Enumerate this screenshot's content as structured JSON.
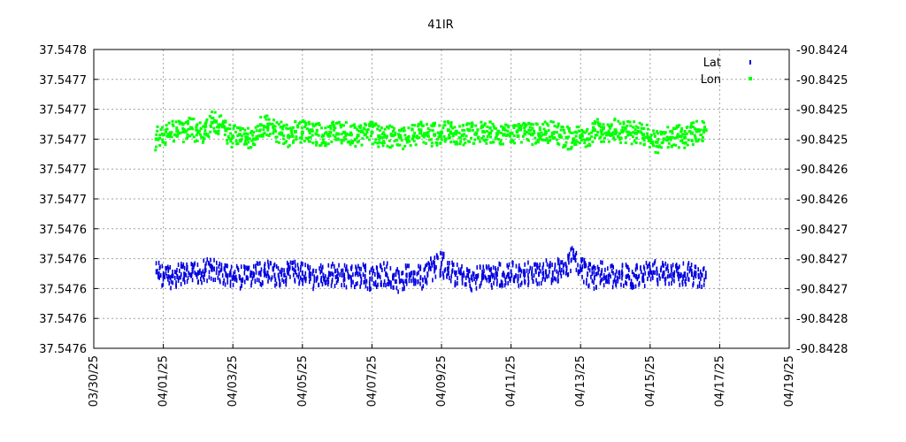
{
  "chart_data": {
    "type": "scatter",
    "title": "41IR",
    "xlabel": "",
    "ylabel": "",
    "y2label": "",
    "grid": true,
    "legend_position": "top-right",
    "x_tick_labels": [
      "03/30/25",
      "04/01/25",
      "04/03/25",
      "04/05/25",
      "04/07/25",
      "04/09/25",
      "04/11/25",
      "04/13/25",
      "04/15/25",
      "04/17/25",
      "04/19/25"
    ],
    "y_left_tick_labels": [
      "37.5478",
      "37.5477",
      "37.5477",
      "37.5477",
      "37.5477",
      "37.5477",
      "37.5476",
      "37.5476",
      "37.5476",
      "37.5476",
      "37.5476"
    ],
    "y_right_tick_labels": [
      "-90.8424",
      "-90.8425",
      "-90.8425",
      "-90.8425",
      "-90.8426",
      "-90.8426",
      "-90.8427",
      "-90.8427",
      "-90.8427",
      "-90.8428",
      "-90.8428"
    ],
    "x_range_days": [
      0,
      20
    ],
    "y_left_range": [
      37.54755,
      37.5478
    ],
    "y_right_range": [
      -90.8428,
      -90.8424
    ],
    "series": [
      {
        "name": "Lat",
        "axis": "left",
        "color": "#0000e0",
        "marker": "dash",
        "x": [
          1.8,
          2.0,
          2.2,
          2.4,
          2.6,
          2.8,
          3.0,
          3.2,
          3.4,
          3.6,
          3.8,
          4.0,
          4.2,
          4.4,
          4.6,
          4.8,
          5.0,
          5.2,
          5.4,
          5.6,
          5.8,
          6.0,
          6.2,
          6.4,
          6.6,
          6.8,
          7.0,
          7.2,
          7.4,
          7.6,
          7.8,
          8.0,
          8.2,
          8.4,
          8.6,
          8.8,
          9.0,
          9.2,
          9.4,
          9.6,
          9.8,
          10.0,
          10.2,
          10.4,
          10.6,
          10.8,
          11.0,
          11.2,
          11.4,
          11.6,
          11.8,
          12.0,
          12.2,
          12.4,
          12.6,
          12.8,
          13.0,
          13.2,
          13.4,
          13.6,
          13.8,
          14.0,
          14.2,
          14.4,
          14.6,
          14.8,
          15.0,
          15.2,
          15.4,
          15.6,
          15.8,
          16.0,
          16.2,
          16.4,
          16.6,
          16.8,
          17.0,
          17.2,
          17.4,
          17.6
        ],
        "y": [
          37.547614,
          37.547611,
          37.547609,
          37.54761,
          37.547612,
          37.547611,
          37.547613,
          37.547615,
          37.547616,
          37.547613,
          37.547612,
          37.547609,
          37.547609,
          37.547609,
          37.547611,
          37.547612,
          37.547613,
          37.547611,
          37.547612,
          37.547613,
          37.547614,
          37.547613,
          37.547611,
          37.547608,
          37.547611,
          37.547612,
          37.54761,
          37.547611,
          37.547609,
          37.547612,
          37.54761,
          37.547608,
          37.547611,
          37.547612,
          37.547609,
          37.547606,
          37.547611,
          37.547613,
          37.547609,
          37.547612,
          37.547618,
          37.547621,
          37.547613,
          37.547612,
          37.547611,
          37.547607,
          37.54761,
          37.547612,
          37.547609,
          37.547612,
          37.547611,
          37.547614,
          37.54761,
          37.547612,
          37.547613,
          37.547612,
          37.547614,
          37.547613,
          37.547616,
          37.547617,
          37.547626,
          37.547616,
          37.547612,
          37.547609,
          37.547613,
          37.54761,
          37.547611,
          37.547612,
          37.547609,
          37.54761,
          37.547611,
          37.547614,
          37.547613,
          37.547613,
          37.547611,
          37.547612,
          37.547612,
          37.547612,
          37.54761,
          37.54761
        ]
      },
      {
        "name": "Lon",
        "axis": "right",
        "color": "#00ff00",
        "marker": "square",
        "x": [
          1.8,
          2.0,
          2.2,
          2.4,
          2.6,
          2.8,
          3.0,
          3.2,
          3.4,
          3.6,
          3.8,
          4.0,
          4.2,
          4.4,
          4.6,
          4.8,
          5.0,
          5.2,
          5.4,
          5.6,
          5.8,
          6.0,
          6.2,
          6.4,
          6.6,
          6.8,
          7.0,
          7.2,
          7.4,
          7.6,
          7.8,
          8.0,
          8.2,
          8.4,
          8.6,
          8.8,
          9.0,
          9.2,
          9.4,
          9.6,
          9.8,
          10.0,
          10.2,
          10.4,
          10.6,
          10.8,
          11.0,
          11.2,
          11.4,
          11.6,
          11.8,
          12.0,
          12.2,
          12.4,
          12.6,
          12.8,
          13.0,
          13.2,
          13.4,
          13.6,
          13.8,
          14.0,
          14.2,
          14.4,
          14.6,
          14.8,
          15.0,
          15.2,
          15.4,
          15.6,
          15.8,
          16.0,
          16.2,
          16.4,
          16.6,
          16.8,
          17.0,
          17.2,
          17.4,
          17.6
        ],
        "y": [
          -90.84252,
          -90.842514,
          -90.842512,
          -90.842509,
          -90.84251,
          -90.842505,
          -90.842511,
          -90.842513,
          -90.842498,
          -90.842501,
          -90.842508,
          -90.842517,
          -90.842514,
          -90.84252,
          -90.84252,
          -90.842501,
          -90.842504,
          -90.842508,
          -90.842512,
          -90.842517,
          -90.84251,
          -90.842511,
          -90.842508,
          -90.842513,
          -90.842515,
          -90.842511,
          -90.842513,
          -90.842511,
          -90.842514,
          -90.842515,
          -90.842514,
          -90.842511,
          -90.842516,
          -90.842517,
          -90.842515,
          -90.842517,
          -90.84252,
          -90.842516,
          -90.842508,
          -90.842515,
          -90.842514,
          -90.842511,
          -90.842508,
          -90.842512,
          -90.842515,
          -90.842508,
          -90.842512,
          -90.84251,
          -90.842512,
          -90.842513,
          -90.842514,
          -90.842512,
          -90.842516,
          -90.842513,
          -90.842514,
          -90.842513,
          -90.842511,
          -90.842512,
          -90.842515,
          -90.842518,
          -90.84252,
          -90.842516,
          -90.84252,
          -90.842508,
          -90.842509,
          -90.842513,
          -90.842508,
          -90.84251,
          -90.842512,
          -90.842512,
          -90.842514,
          -90.842518,
          -90.842524,
          -90.84252,
          -90.842518,
          -90.842516,
          -90.842518,
          -90.842512,
          -90.842509,
          -90.842508
        ]
      }
    ]
  }
}
